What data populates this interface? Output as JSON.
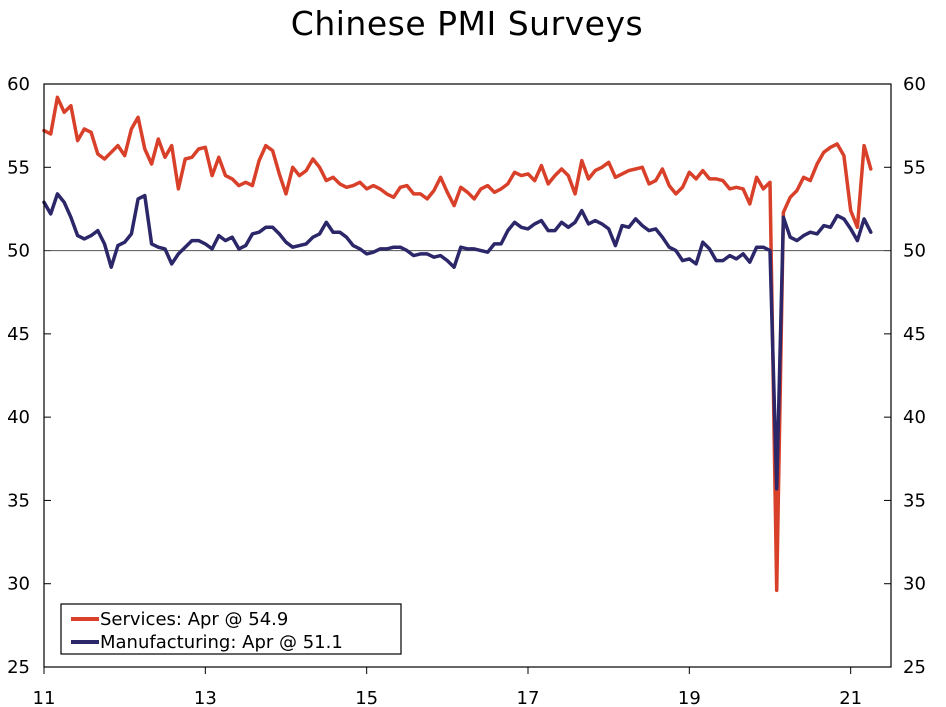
{
  "chart_data": {
    "type": "line",
    "title": "Chinese PMI Surveys",
    "xlabel": "",
    "ylabel": "",
    "ylim": [
      25,
      60
    ],
    "yticks": [
      25,
      30,
      35,
      40,
      45,
      50,
      55,
      60
    ],
    "xlim": [
      2011.0,
      2021.5
    ],
    "xticks": [
      {
        "value": 2011,
        "label": "11"
      },
      {
        "value": 2013,
        "label": "13"
      },
      {
        "value": 2015,
        "label": "15"
      },
      {
        "value": 2017,
        "label": "17"
      },
      {
        "value": 2019,
        "label": "19"
      },
      {
        "value": 2021,
        "label": "21"
      }
    ],
    "reference_line": 50,
    "legend_position": "bottom-left",
    "start": "2011-01",
    "series": [
      {
        "name": "Services: Apr @ 54.9",
        "color": "#d9402a",
        "values": [
          57.2,
          57.0,
          59.2,
          58.3,
          58.7,
          56.6,
          57.3,
          57.1,
          55.8,
          55.5,
          55.9,
          56.3,
          55.7,
          57.3,
          58.0,
          56.1,
          55.2,
          56.7,
          55.6,
          56.3,
          53.7,
          55.5,
          55.6,
          56.1,
          56.2,
          54.5,
          55.6,
          54.5,
          54.3,
          53.9,
          54.1,
          53.9,
          55.4,
          56.3,
          56.0,
          54.6,
          53.4,
          55.0,
          54.5,
          54.8,
          55.5,
          55.0,
          54.2,
          54.4,
          54.0,
          53.8,
          53.9,
          54.1,
          53.7,
          53.9,
          53.7,
          53.4,
          53.2,
          53.8,
          53.9,
          53.4,
          53.4,
          53.1,
          53.6,
          54.4,
          53.5,
          52.7,
          53.8,
          53.5,
          53.1,
          53.7,
          53.9,
          53.5,
          53.7,
          54.0,
          54.7,
          54.5,
          54.6,
          54.2,
          55.1,
          54.0,
          54.5,
          54.9,
          54.5,
          53.4,
          55.4,
          54.3,
          54.8,
          55.0,
          55.3,
          54.4,
          54.6,
          54.8,
          54.9,
          55.0,
          54.0,
          54.2,
          54.9,
          53.9,
          53.4,
          53.8,
          54.7,
          54.3,
          54.8,
          54.3,
          54.3,
          54.2,
          53.7,
          53.8,
          53.7,
          52.8,
          54.4,
          53.7,
          54.1,
          29.6,
          52.3,
          53.2,
          53.6,
          54.4,
          54.2,
          55.2,
          55.9,
          56.2,
          56.4,
          55.7,
          52.4,
          51.4,
          56.3,
          54.9
        ]
      },
      {
        "name": "Manufacturing: Apr @ 51.1",
        "color": "#2b2769",
        "values": [
          52.9,
          52.2,
          53.4,
          52.9,
          52.0,
          50.9,
          50.7,
          50.9,
          51.2,
          50.4,
          49.0,
          50.3,
          50.5,
          51.0,
          53.1,
          53.3,
          50.4,
          50.2,
          50.1,
          49.2,
          49.8,
          50.2,
          50.6,
          50.6,
          50.4,
          50.1,
          50.9,
          50.6,
          50.8,
          50.1,
          50.3,
          51.0,
          51.1,
          51.4,
          51.4,
          51.0,
          50.5,
          50.2,
          50.3,
          50.4,
          50.8,
          51.0,
          51.7,
          51.1,
          51.1,
          50.8,
          50.3,
          50.1,
          49.8,
          49.9,
          50.1,
          50.1,
          50.2,
          50.2,
          50.0,
          49.7,
          49.8,
          49.8,
          49.6,
          49.7,
          49.4,
          49.0,
          50.2,
          50.1,
          50.1,
          50.0,
          49.9,
          50.4,
          50.4,
          51.2,
          51.7,
          51.4,
          51.3,
          51.6,
          51.8,
          51.2,
          51.2,
          51.7,
          51.4,
          51.7,
          52.4,
          51.6,
          51.8,
          51.6,
          51.3,
          50.3,
          51.5,
          51.4,
          51.9,
          51.5,
          51.2,
          51.3,
          50.8,
          50.2,
          50.0,
          49.4,
          49.5,
          49.2,
          50.5,
          50.1,
          49.4,
          49.4,
          49.7,
          49.5,
          49.8,
          49.3,
          50.2,
          50.2,
          50.0,
          35.7,
          52.0,
          50.8,
          50.6,
          50.9,
          51.1,
          51.0,
          51.5,
          51.4,
          52.1,
          51.9,
          51.3,
          50.6,
          51.9,
          51.1
        ]
      }
    ]
  }
}
